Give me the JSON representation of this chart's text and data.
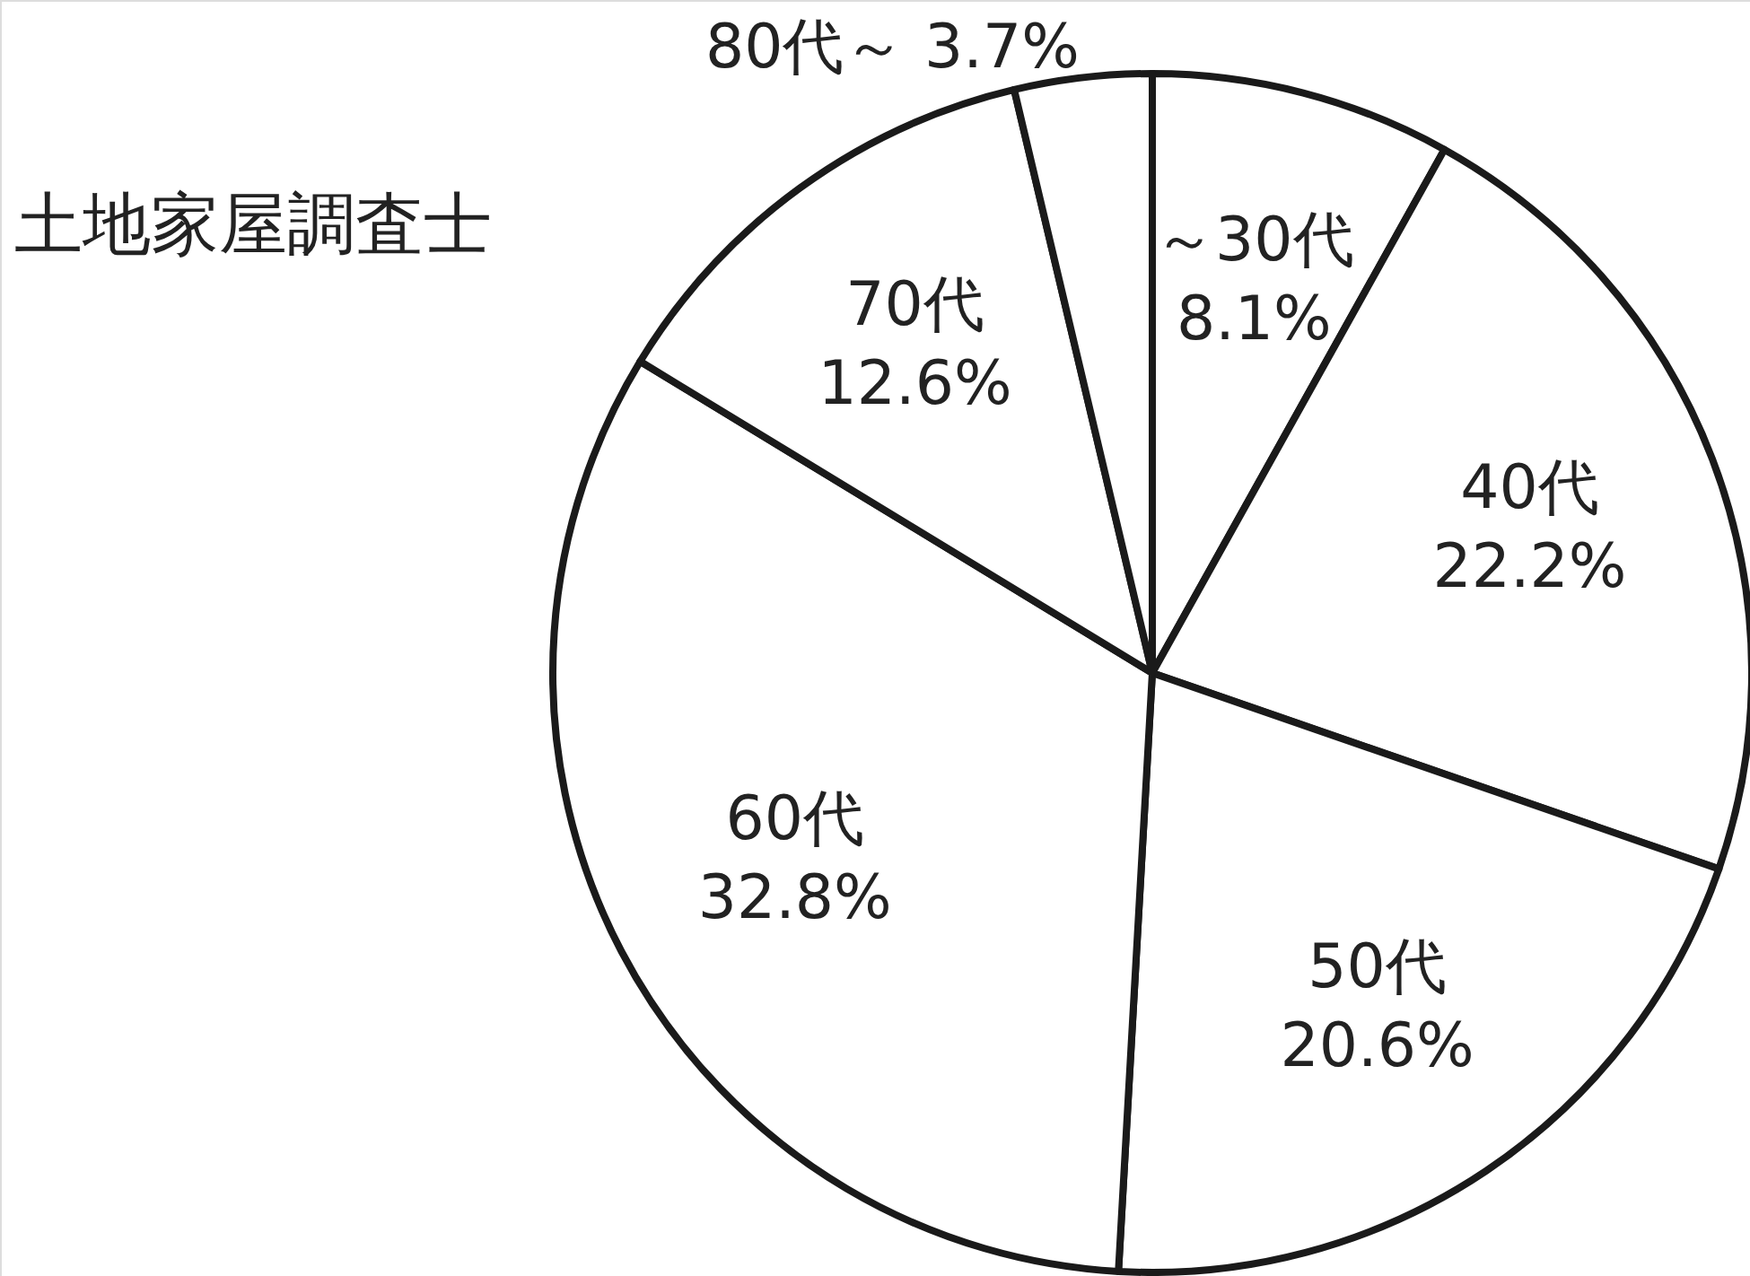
{
  "chart_data": {
    "type": "pie",
    "title": "土地家屋調査士",
    "categories": [
      "～30代",
      "40代",
      "50代",
      "60代",
      "70代",
      "80代～"
    ],
    "values": [
      8.1,
      22.2,
      20.6,
      32.8,
      12.6,
      3.7
    ],
    "value_labels": [
      "8.1%",
      "22.2%",
      "20.6%",
      "32.8%",
      "12.6%",
      "3.7%"
    ],
    "colors": [
      "#ffffff",
      "#ffffff",
      "#ffffff",
      "#ffffff",
      "#ffffff",
      "#ffffff"
    ]
  }
}
